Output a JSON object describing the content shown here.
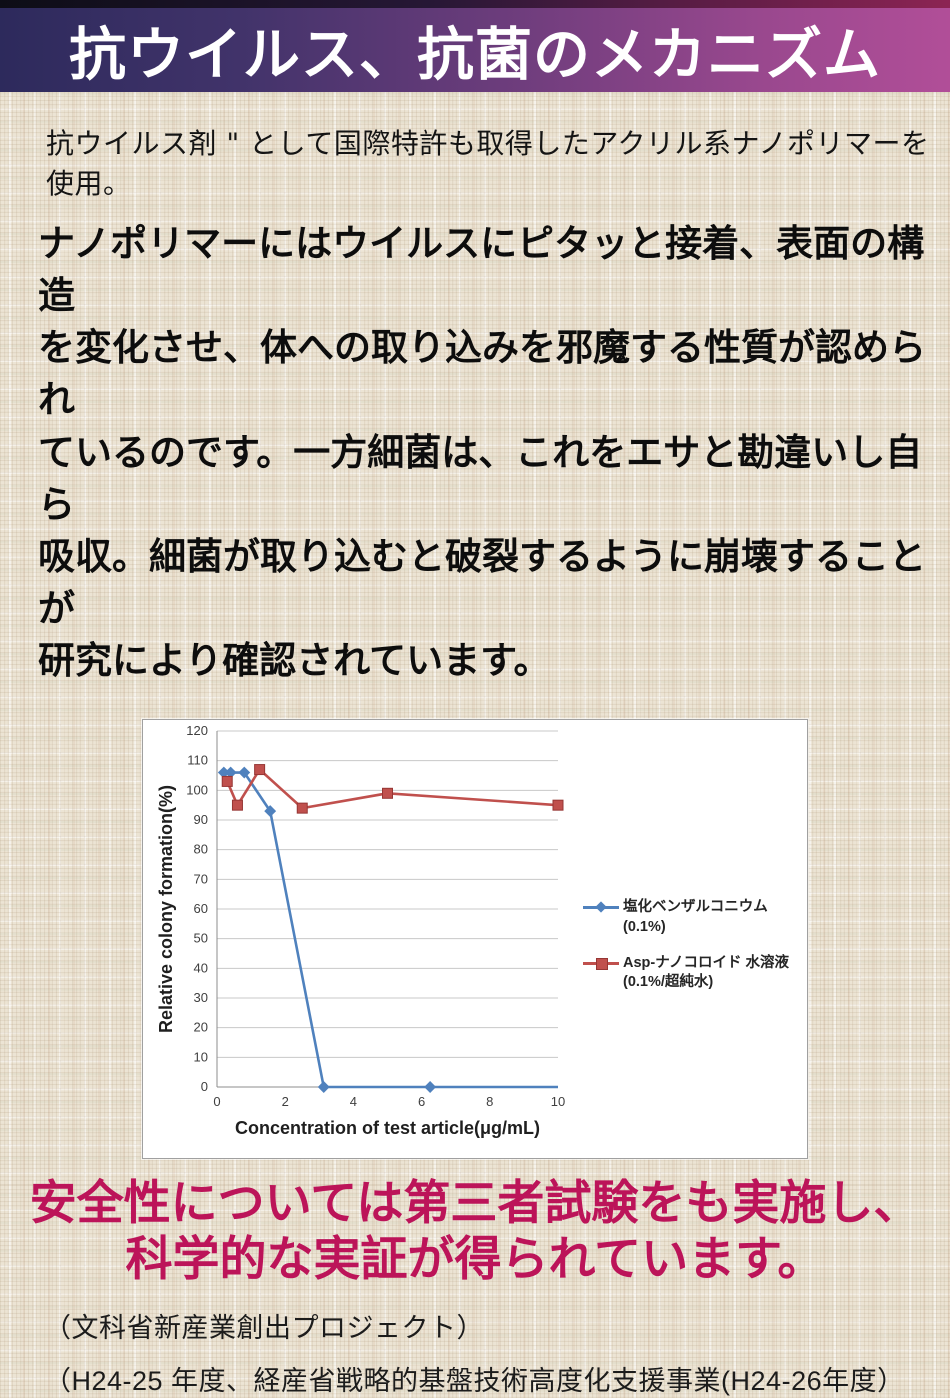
{
  "header": {
    "title": "抗ウイルス、抗菌のメカニズム",
    "gradient": [
      "#2d2a5c",
      "#b14e98"
    ],
    "top_strip_gradient": [
      "#0d0d16",
      "#8c2453"
    ]
  },
  "intro_text": "抗ウイルス剤 \" として国際特許も取得したアクリル系ナノポリマーを使用。",
  "body_text": "ナノポリマーにはウイルスにピタッと接着、表面の構造\nを変化させ、体への取り込みを邪魔する性質が認められ\nているのです。一方細菌は、これをエサと勘違いし自ら\n吸収。細菌が取り込むと破裂するように崩壊することが\n研究により確認されています。",
  "chart_data": {
    "type": "line",
    "title": "",
    "xlabel": "Concentration of test article(μg/mL)",
    "ylabel": "Relative colony formation(%)",
    "xlim": [
      0,
      10
    ],
    "ylim": [
      0,
      120
    ],
    "xticks": [
      0,
      2,
      4,
      6,
      8,
      10
    ],
    "yticks": [
      0,
      10,
      20,
      30,
      40,
      50,
      60,
      70,
      80,
      90,
      100,
      110,
      120
    ],
    "grid": true,
    "legend_position": "right",
    "series": [
      {
        "name": "塩化ベンザルコニウム (0.1%)",
        "color": "#4f81bd",
        "marker": "diamond",
        "x": [
          0.2,
          0.4,
          0.8,
          1.56,
          3.13,
          6.25,
          10
        ],
        "y": [
          106,
          106,
          106,
          93,
          0,
          0,
          0
        ],
        "last_marker": false
      },
      {
        "name": "Asp-ナノコロイド 水溶液(0.1%/超純水)",
        "color": "#c0504d",
        "marker_border": "#963634",
        "marker": "square",
        "x": [
          0.3,
          0.6,
          1.25,
          2.5,
          5,
          10
        ],
        "y": [
          103,
          95,
          107,
          94,
          99,
          95
        ]
      }
    ]
  },
  "safety_heading": "安全性については第三者試験をも実施し、\n科学的な実証が得られています。",
  "safety_color": "#bc1459",
  "footnotes": [
    "（文科省新産業創出プロジェクト）",
    "（H24-25 年度、経産省戦略的基盤技術高度化支援事業(H24-26年度）"
  ]
}
